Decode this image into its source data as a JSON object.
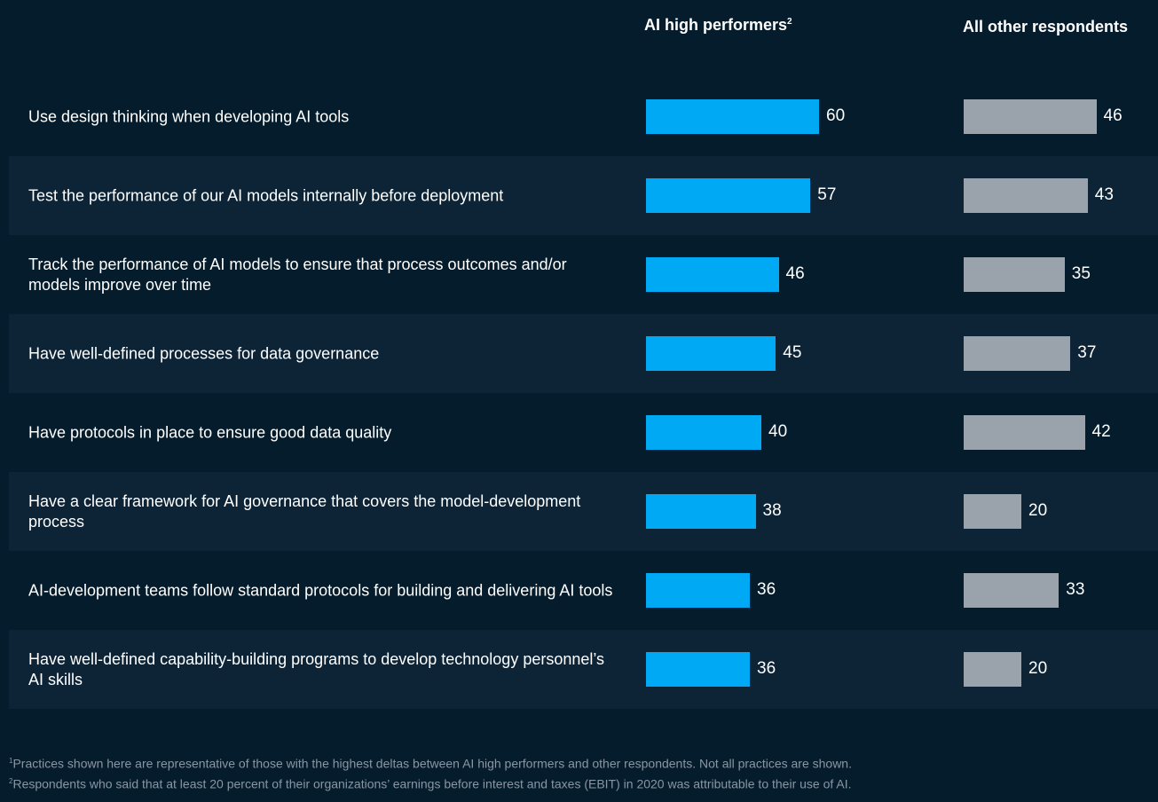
{
  "colors": {
    "background": "#051c2c",
    "row_shade": "#0d2436",
    "high_bar": "#00a9f4",
    "other_bar": "#9aa3ab",
    "footnote_text": "#8a96a3"
  },
  "headers": {
    "high": "AI high performers",
    "high_sup": "2",
    "other": "All other respondents"
  },
  "chart_data": {
    "type": "bar",
    "orientation": "horizontal",
    "unit": "% of respondents",
    "xlim": [
      0,
      100
    ],
    "categories": [
      "Use design thinking when developing AI tools",
      "Test the performance of our AI models internally before deployment",
      "Track the performance of AI models to ensure that process outcomes and/or models improve over time",
      "Have well-defined processes for data governance",
      "Have protocols in place to ensure good data quality",
      "Have a clear framework for AI governance that covers the model-development process",
      "AI-development teams follow standard protocols for building and delivering AI tools",
      "Have well-defined capability-building programs to develop technology personnel’s AI skills"
    ],
    "series": [
      {
        "name": "AI high performers",
        "values": [
          60,
          57,
          46,
          45,
          40,
          38,
          36,
          36
        ]
      },
      {
        "name": "All other respondents",
        "values": [
          46,
          43,
          35,
          37,
          42,
          20,
          33,
          20
        ]
      }
    ]
  },
  "footnotes": [
    {
      "sup": "1",
      "text": "Practices shown here are representative of those with the highest deltas between AI high performers and other respondents. Not all practices are shown."
    },
    {
      "sup": "2",
      "text": "Respondents who said that at least 20 percent of their organizations’ earnings before interest and taxes (EBIT) in 2020 was attributable to their use of AI."
    }
  ]
}
